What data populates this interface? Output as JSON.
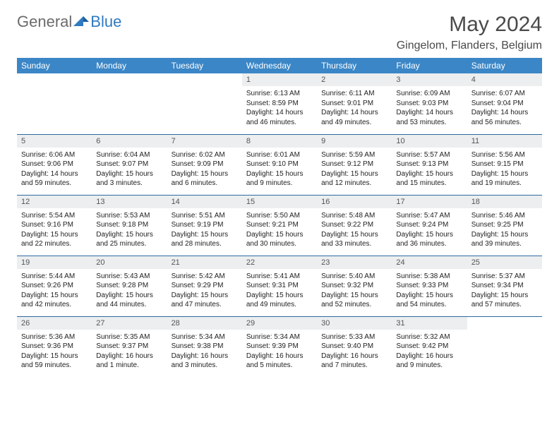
{
  "brand": {
    "part1": "General",
    "part2": "Blue"
  },
  "title": "May 2024",
  "location": "Gingelom, Flanders, Belgium",
  "colors": {
    "header_bg": "#3b86c6",
    "header_fg": "#ffffff",
    "daynum_bg": "#eceeef",
    "border": "#2f6aa3",
    "brand_gray": "#6b6b6b",
    "brand_blue": "#2f7ac0"
  },
  "day_names": [
    "Sunday",
    "Monday",
    "Tuesday",
    "Wednesday",
    "Thursday",
    "Friday",
    "Saturday"
  ],
  "weeks": [
    [
      null,
      null,
      null,
      {
        "n": "1",
        "sr": "6:13 AM",
        "ss": "8:59 PM",
        "dl": "14 hours and 46 minutes."
      },
      {
        "n": "2",
        "sr": "6:11 AM",
        "ss": "9:01 PM",
        "dl": "14 hours and 49 minutes."
      },
      {
        "n": "3",
        "sr": "6:09 AM",
        "ss": "9:03 PM",
        "dl": "14 hours and 53 minutes."
      },
      {
        "n": "4",
        "sr": "6:07 AM",
        "ss": "9:04 PM",
        "dl": "14 hours and 56 minutes."
      }
    ],
    [
      {
        "n": "5",
        "sr": "6:06 AM",
        "ss": "9:06 PM",
        "dl": "14 hours and 59 minutes."
      },
      {
        "n": "6",
        "sr": "6:04 AM",
        "ss": "9:07 PM",
        "dl": "15 hours and 3 minutes."
      },
      {
        "n": "7",
        "sr": "6:02 AM",
        "ss": "9:09 PM",
        "dl": "15 hours and 6 minutes."
      },
      {
        "n": "8",
        "sr": "6:01 AM",
        "ss": "9:10 PM",
        "dl": "15 hours and 9 minutes."
      },
      {
        "n": "9",
        "sr": "5:59 AM",
        "ss": "9:12 PM",
        "dl": "15 hours and 12 minutes."
      },
      {
        "n": "10",
        "sr": "5:57 AM",
        "ss": "9:13 PM",
        "dl": "15 hours and 15 minutes."
      },
      {
        "n": "11",
        "sr": "5:56 AM",
        "ss": "9:15 PM",
        "dl": "15 hours and 19 minutes."
      }
    ],
    [
      {
        "n": "12",
        "sr": "5:54 AM",
        "ss": "9:16 PM",
        "dl": "15 hours and 22 minutes."
      },
      {
        "n": "13",
        "sr": "5:53 AM",
        "ss": "9:18 PM",
        "dl": "15 hours and 25 minutes."
      },
      {
        "n": "14",
        "sr": "5:51 AM",
        "ss": "9:19 PM",
        "dl": "15 hours and 28 minutes."
      },
      {
        "n": "15",
        "sr": "5:50 AM",
        "ss": "9:21 PM",
        "dl": "15 hours and 30 minutes."
      },
      {
        "n": "16",
        "sr": "5:48 AM",
        "ss": "9:22 PM",
        "dl": "15 hours and 33 minutes."
      },
      {
        "n": "17",
        "sr": "5:47 AM",
        "ss": "9:24 PM",
        "dl": "15 hours and 36 minutes."
      },
      {
        "n": "18",
        "sr": "5:46 AM",
        "ss": "9:25 PM",
        "dl": "15 hours and 39 minutes."
      }
    ],
    [
      {
        "n": "19",
        "sr": "5:44 AM",
        "ss": "9:26 PM",
        "dl": "15 hours and 42 minutes."
      },
      {
        "n": "20",
        "sr": "5:43 AM",
        "ss": "9:28 PM",
        "dl": "15 hours and 44 minutes."
      },
      {
        "n": "21",
        "sr": "5:42 AM",
        "ss": "9:29 PM",
        "dl": "15 hours and 47 minutes."
      },
      {
        "n": "22",
        "sr": "5:41 AM",
        "ss": "9:31 PM",
        "dl": "15 hours and 49 minutes."
      },
      {
        "n": "23",
        "sr": "5:40 AM",
        "ss": "9:32 PM",
        "dl": "15 hours and 52 minutes."
      },
      {
        "n": "24",
        "sr": "5:38 AM",
        "ss": "9:33 PM",
        "dl": "15 hours and 54 minutes."
      },
      {
        "n": "25",
        "sr": "5:37 AM",
        "ss": "9:34 PM",
        "dl": "15 hours and 57 minutes."
      }
    ],
    [
      {
        "n": "26",
        "sr": "5:36 AM",
        "ss": "9:36 PM",
        "dl": "15 hours and 59 minutes."
      },
      {
        "n": "27",
        "sr": "5:35 AM",
        "ss": "9:37 PM",
        "dl": "16 hours and 1 minute."
      },
      {
        "n": "28",
        "sr": "5:34 AM",
        "ss": "9:38 PM",
        "dl": "16 hours and 3 minutes."
      },
      {
        "n": "29",
        "sr": "5:34 AM",
        "ss": "9:39 PM",
        "dl": "16 hours and 5 minutes."
      },
      {
        "n": "30",
        "sr": "5:33 AM",
        "ss": "9:40 PM",
        "dl": "16 hours and 7 minutes."
      },
      {
        "n": "31",
        "sr": "5:32 AM",
        "ss": "9:42 PM",
        "dl": "16 hours and 9 minutes."
      },
      null
    ]
  ]
}
